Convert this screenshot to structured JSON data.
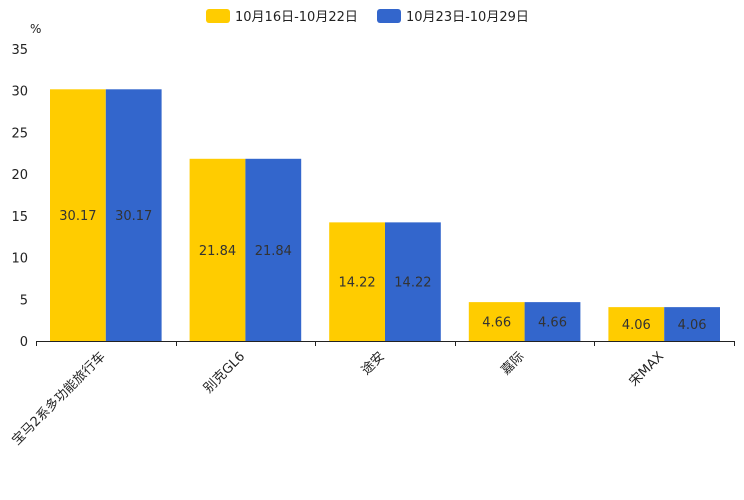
{
  "chart_data": {
    "type": "bar",
    "title": "",
    "xlabel": "",
    "ylabel": "%",
    "ylim": [
      0,
      35
    ],
    "yticks": [
      0,
      5,
      10,
      15,
      20,
      25,
      30,
      35
    ],
    "categories": [
      "宝马2系多功能旅行车",
      "别克GL6",
      "途安",
      "嘉际",
      "宋MAX"
    ],
    "series": [
      {
        "name": "10月16日-10月22日",
        "color": "#FFCC00",
        "values": [
          30.17,
          21.84,
          14.22,
          4.66,
          4.06
        ]
      },
      {
        "name": "10月23日-10月29日",
        "color": "#3366CC",
        "values": [
          30.17,
          21.84,
          14.22,
          4.66,
          4.06
        ]
      }
    ],
    "legend_position": "top-center",
    "grid": false
  }
}
